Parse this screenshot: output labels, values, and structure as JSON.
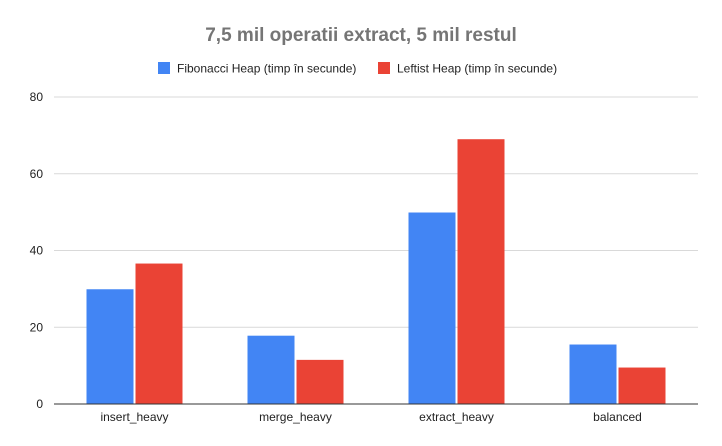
{
  "chart_data": {
    "type": "bar",
    "title": "7,5 mil operatii extract, 5 mil restul",
    "xlabel": "",
    "ylabel": "",
    "categories": [
      "insert_heavy",
      "merge_heavy",
      "extract_heavy",
      "balanced"
    ],
    "series": [
      {
        "name": "Fibonacci Heap (timp în secunde)",
        "color": "#4285f4",
        "values": [
          29.9,
          17.8,
          49.9,
          15.5
        ]
      },
      {
        "name": "Leftist Heap (timp în secunde)",
        "color": "#ea4335",
        "values": [
          36.6,
          11.5,
          69.0,
          9.5
        ]
      }
    ],
    "ylim": [
      0,
      80
    ],
    "yticks": [
      0,
      20,
      40,
      60,
      80
    ],
    "grid": true,
    "legend": "top-center"
  }
}
